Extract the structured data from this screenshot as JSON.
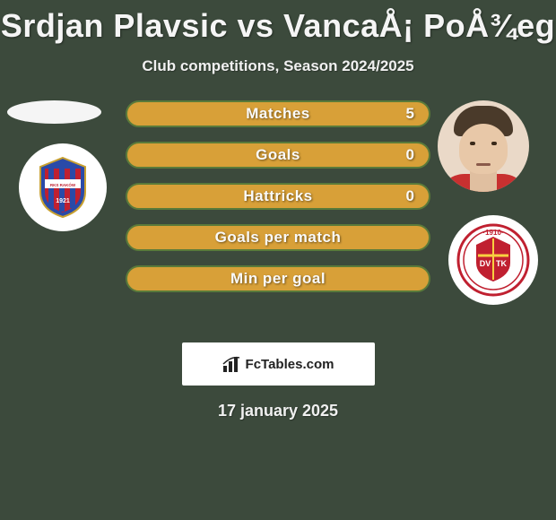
{
  "title": "Srdjan Plavsic vs VancaÅ¡ PoÅ¾eg",
  "subtitle": "Club competitions, Season 2024/2025",
  "date": "17 january 2025",
  "branding": "FcTables.com",
  "bar_style": {
    "bg_color": "#d8a038",
    "border_color": "#5a7a3a",
    "label_color": "#fafafa",
    "height": 30,
    "radius": 15,
    "fontsize": 17
  },
  "stats": [
    {
      "label": "Matches",
      "value": "5"
    },
    {
      "label": "Goals",
      "value": "0"
    },
    {
      "label": "Hattricks",
      "value": "0"
    },
    {
      "label": "Goals per match",
      "value": ""
    },
    {
      "label": "Min per goal",
      "value": ""
    }
  ],
  "left_club": {
    "name": "RKS Raków Częstochowa",
    "badge_bg": "#2a4aa8",
    "badge_stripes": "#c02030",
    "year": "1921"
  },
  "right_club": {
    "name": "DVTK",
    "badge_border": "#c02030",
    "badge_bg": "#ffffff",
    "year": "1910"
  },
  "background_color": "#3c4a3c",
  "title_fontsize": 36,
  "subtitle_fontsize": 17,
  "date_fontsize": 18
}
